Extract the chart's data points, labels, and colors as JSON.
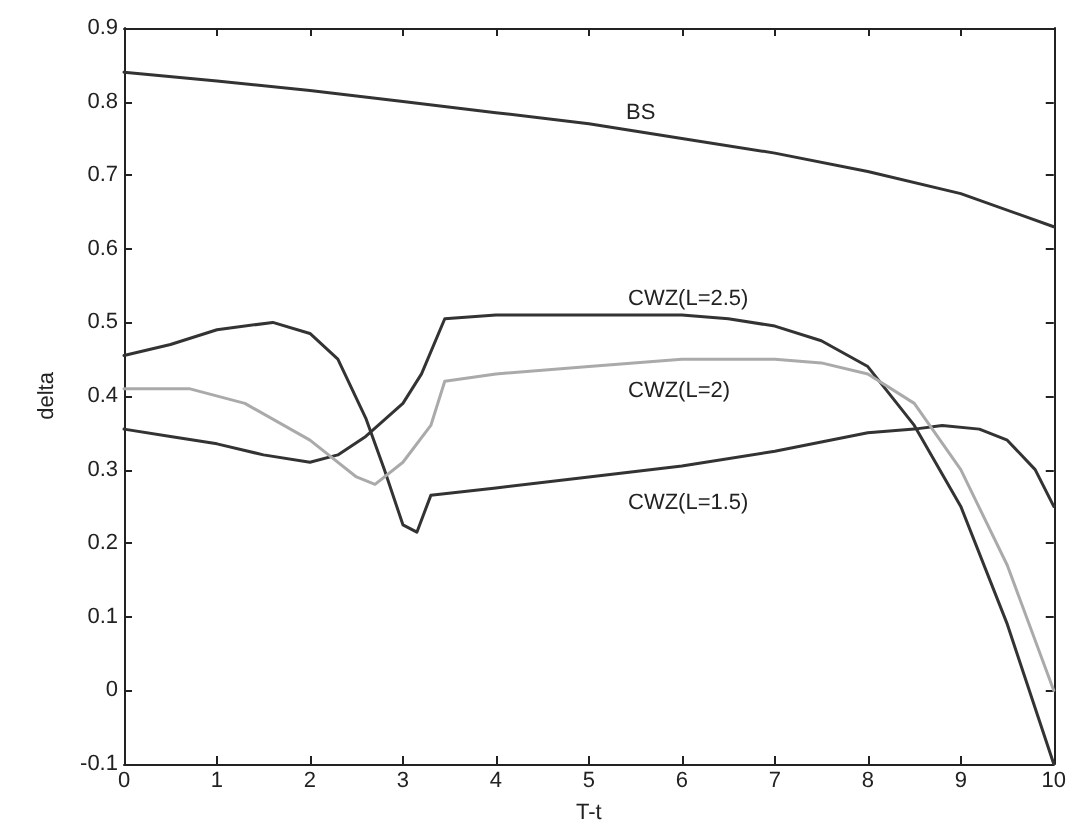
{
  "chart_data": {
    "type": "line",
    "xlabel": "T-t",
    "ylabel": "delta",
    "xlim": [
      0,
      10
    ],
    "xticks": [
      0,
      1,
      2,
      3,
      4,
      5,
      6,
      7,
      8,
      9,
      10
    ],
    "ylim": [
      -0.1,
      0.9
    ],
    "yticks": [
      -0.1,
      0,
      0.1,
      0.2,
      0.3,
      0.4,
      0.5,
      0.6,
      0.7,
      0.8,
      0.9
    ],
    "grid": false,
    "marker": "none",
    "line_style": "solid",
    "series": [
      {
        "name": "BS",
        "color": "#333333",
        "x": [
          0,
          1,
          2,
          3,
          4,
          5,
          6,
          7,
          8,
          9,
          10
        ],
        "values": [
          0.84,
          0.828,
          0.815,
          0.8,
          0.785,
          0.77,
          0.75,
          0.73,
          0.705,
          0.675,
          0.63
        ]
      },
      {
        "name": "CWZ(L=1.5)",
        "color": "#333333",
        "x": [
          0,
          0.5,
          1,
          1.6,
          2,
          2.3,
          2.6,
          2.8,
          3.0,
          3.15,
          3.3,
          4,
          5,
          6,
          7,
          8,
          8.5,
          8.8,
          9.2,
          9.5,
          9.8,
          10
        ],
        "values": [
          0.455,
          0.47,
          0.49,
          0.5,
          0.485,
          0.45,
          0.37,
          0.3,
          0.225,
          0.215,
          0.265,
          0.275,
          0.29,
          0.305,
          0.325,
          0.35,
          0.355,
          0.36,
          0.355,
          0.34,
          0.3,
          0.25
        ]
      },
      {
        "name": "CWZ(L=2.5)",
        "color": "#333333",
        "x": [
          0,
          0.5,
          1,
          1.5,
          2,
          2.3,
          2.6,
          3,
          3.2,
          3.45,
          4,
          5,
          6,
          6.5,
          7,
          7.5,
          8,
          8.5,
          9,
          9.5,
          10
        ],
        "values": [
          0.355,
          0.345,
          0.335,
          0.32,
          0.31,
          0.32,
          0.345,
          0.39,
          0.43,
          0.505,
          0.51,
          0.51,
          0.51,
          0.505,
          0.495,
          0.475,
          0.44,
          0.36,
          0.25,
          0.09,
          -0.1
        ]
      },
      {
        "name": "CWZ(L=2)",
        "color": "#aaaaaa",
        "x": [
          0,
          0.7,
          1.3,
          2,
          2.5,
          2.7,
          3,
          3.3,
          3.45,
          4,
          5,
          6,
          7,
          7.5,
          8,
          8.5,
          9,
          9.5,
          10
        ],
        "values": [
          0.41,
          0.41,
          0.39,
          0.34,
          0.29,
          0.28,
          0.31,
          0.36,
          0.42,
          0.43,
          0.44,
          0.45,
          0.45,
          0.445,
          0.43,
          0.39,
          0.3,
          0.17,
          0.0
        ]
      }
    ]
  }
}
